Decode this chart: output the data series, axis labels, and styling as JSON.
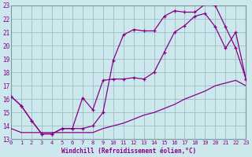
{
  "title": "",
  "xlabel": "Windchill (Refroidissement éolien,°C)",
  "ylabel": "",
  "background_color": "#cce8ec",
  "grid_color": "#9bbec4",
  "line_color": "#880088",
  "xlim": [
    0,
    23
  ],
  "ylim": [
    13,
    23
  ],
  "xticks": [
    0,
    1,
    2,
    3,
    4,
    5,
    6,
    7,
    8,
    9,
    10,
    11,
    12,
    13,
    14,
    15,
    16,
    17,
    18,
    19,
    20,
    21,
    22,
    23
  ],
  "yticks": [
    13,
    14,
    15,
    16,
    17,
    18,
    19,
    20,
    21,
    22,
    23
  ],
  "series": [
    {
      "x": [
        0,
        1,
        2,
        3,
        4,
        5,
        6,
        7,
        8,
        9,
        10,
        11,
        12,
        13,
        14,
        15,
        16,
        17,
        18,
        19,
        20,
        21,
        22,
        23
      ],
      "y": [
        16.2,
        15.5,
        14.4,
        13.4,
        13.4,
        13.8,
        13.8,
        13.8,
        14.0,
        15.0,
        18.9,
        20.8,
        21.2,
        21.1,
        21.1,
        22.2,
        22.6,
        22.5,
        22.5,
        23.1,
        23.0,
        21.4,
        19.8,
        17.5
      ]
    },
    {
      "x": [
        0,
        1,
        2,
        3,
        4,
        5,
        6,
        7,
        8,
        9,
        10,
        11,
        12,
        13,
        14,
        15,
        16,
        17,
        18,
        19,
        20,
        21,
        22,
        23
      ],
      "y": [
        16.2,
        15.5,
        14.4,
        13.4,
        13.4,
        13.8,
        13.8,
        16.1,
        15.2,
        17.4,
        17.5,
        17.5,
        17.6,
        17.5,
        18.0,
        19.5,
        21.0,
        21.5,
        22.2,
        22.4,
        21.4,
        19.8,
        21.0,
        17.5
      ]
    },
    {
      "x": [
        0,
        1,
        2,
        3,
        4,
        5,
        6,
        7,
        8,
        9,
        10,
        11,
        12,
        13,
        14,
        15,
        16,
        17,
        18,
        19,
        20,
        21,
        22,
        23
      ],
      "y": [
        13.8,
        13.5,
        13.5,
        13.5,
        13.5,
        13.5,
        13.5,
        13.5,
        13.5,
        13.8,
        14.0,
        14.2,
        14.5,
        14.8,
        15.0,
        15.3,
        15.6,
        16.0,
        16.3,
        16.6,
        17.0,
        17.2,
        17.4,
        17.0
      ]
    }
  ]
}
